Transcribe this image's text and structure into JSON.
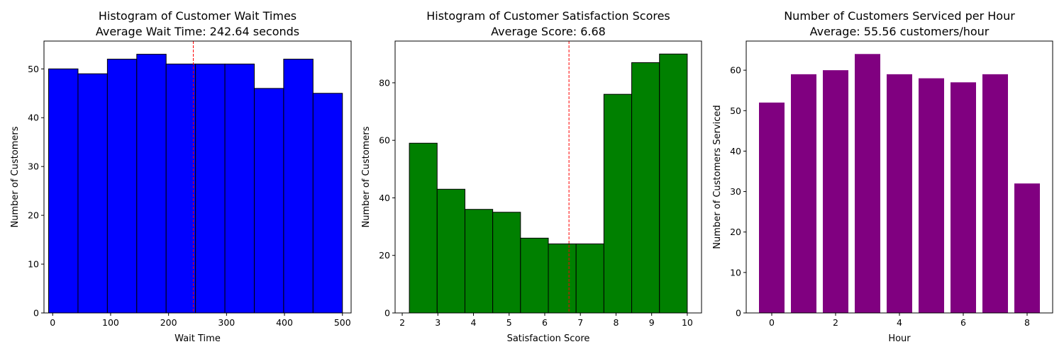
{
  "chart_data": [
    {
      "type": "bar",
      "subtype": "histogram",
      "title": "Histogram of Customer Wait Times",
      "subtitle": "Average Wait Time: 242.64 seconds",
      "xlabel": "Wait Time",
      "ylabel": "Number of Customers",
      "xlim": [
        -15,
        515
      ],
      "ylim": [
        0,
        55.7
      ],
      "xticks": [
        0,
        100,
        200,
        300,
        400,
        500
      ],
      "yticks": [
        0,
        10,
        20,
        30,
        40,
        50
      ],
      "bin_edges": [
        -7,
        43.7,
        94.4,
        145.1,
        195.8,
        246.5,
        297.2,
        347.9,
        398.6,
        449.3,
        500
      ],
      "values": [
        50,
        49,
        52,
        53,
        51,
        51,
        51,
        46,
        52,
        45
      ],
      "bar_color": "#0000ff",
      "edge_color": "#000000",
      "mean_line": {
        "value": 242.64,
        "color": "#ff0000",
        "style": "dashed"
      },
      "grid": false,
      "legend": "none"
    },
    {
      "type": "bar",
      "subtype": "histogram",
      "title": "Histogram of Customer Satisfaction Scores",
      "subtitle": "Average Score: 6.68",
      "xlabel": "Satisfaction Score",
      "ylabel": "Number of Customers",
      "xlim": [
        1.8,
        10.4
      ],
      "ylim": [
        0,
        94.5
      ],
      "xticks": [
        2,
        3,
        4,
        5,
        6,
        7,
        8,
        9,
        10
      ],
      "yticks": [
        0,
        20,
        40,
        60,
        80
      ],
      "bin_edges": [
        2.2,
        2.98,
        3.76,
        4.54,
        5.32,
        6.1,
        6.88,
        7.66,
        8.44,
        9.22,
        10.0
      ],
      "values": [
        59,
        43,
        36,
        35,
        26,
        24,
        24,
        76,
        87,
        90
      ],
      "bar_color": "#008000",
      "edge_color": "#000000",
      "mean_line": {
        "value": 6.68,
        "color": "#ff0000",
        "style": "dashed"
      },
      "grid": false,
      "legend": "none"
    },
    {
      "type": "bar",
      "title": "Number of Customers Serviced per Hour",
      "subtitle": "Average: 55.56 customers/hour",
      "xlabel": "Hour",
      "ylabel": "Number of Customers Serviced",
      "xlim": [
        -0.8,
        8.8
      ],
      "ylim": [
        0,
        67.2
      ],
      "xticks": [
        0,
        2,
        4,
        6,
        8
      ],
      "yticks": [
        0,
        10,
        20,
        30,
        40,
        50,
        60
      ],
      "categories": [
        0,
        1,
        2,
        3,
        4,
        5,
        6,
        7,
        8
      ],
      "values": [
        52,
        59,
        60,
        64,
        59,
        58,
        57,
        59,
        32
      ],
      "bar_width": 0.8,
      "bar_color": "#800080",
      "grid": false,
      "legend": "none"
    }
  ]
}
